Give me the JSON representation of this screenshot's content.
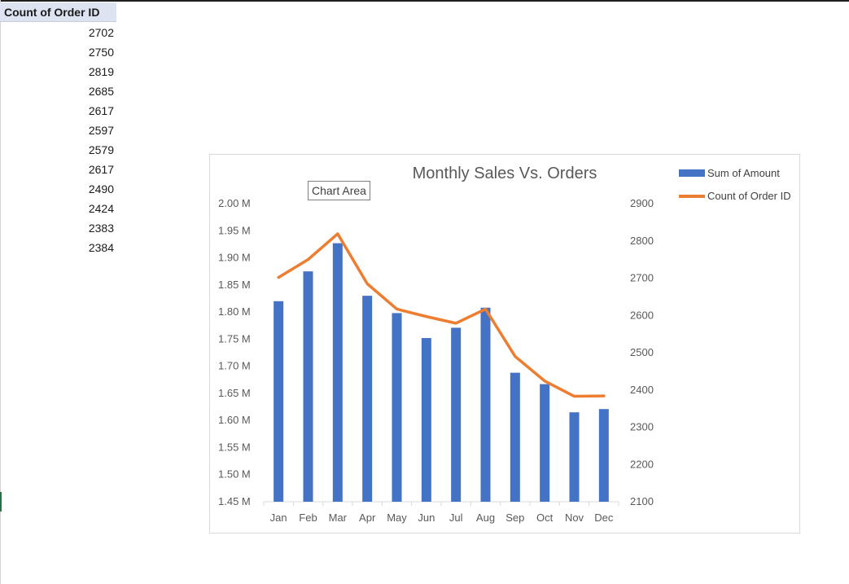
{
  "sheet": {
    "header": "Count of Order ID",
    "values": [
      "2702",
      "2750",
      "2819",
      "2685",
      "2617",
      "2597",
      "2579",
      "2617",
      "2490",
      "2424",
      "2383",
      "2384"
    ]
  },
  "chart_tooltip": "Chart Area",
  "chart_data": {
    "type": "bar",
    "title": "Monthly Sales Vs. Orders",
    "categories": [
      "Jan",
      "Feb",
      "Mar",
      "Apr",
      "May",
      "Jun",
      "Jul",
      "Aug",
      "Sep",
      "Oct",
      "Nov",
      "Dec"
    ],
    "series": [
      {
        "name": "Sum of Amount",
        "type": "bar",
        "axis": "left",
        "color": "#4472c4",
        "values": [
          1820000,
          1875000,
          1927000,
          1830000,
          1798000,
          1752000,
          1771000,
          1808000,
          1688000,
          1667000,
          1615000,
          1621000
        ]
      },
      {
        "name": "Count of Order ID",
        "type": "line",
        "axis": "right",
        "color": "#ed7d31",
        "values": [
          2702,
          2750,
          2819,
          2685,
          2617,
          2597,
          2579,
          2617,
          2490,
          2424,
          2383,
          2384
        ]
      }
    ],
    "y_left": {
      "ylim": [
        1450000,
        2000000
      ],
      "tick_labels": [
        "1.45 M",
        "1.50 M",
        "1.55 M",
        "1.60 M",
        "1.65 M",
        "1.70 M",
        "1.75 M",
        "1.80 M",
        "1.85 M",
        "1.90 M",
        "1.95 M",
        "2.00 M"
      ]
    },
    "y_right": {
      "ylim": [
        2100,
        2900
      ],
      "tick_labels": [
        "2100",
        "2200",
        "2300",
        "2400",
        "2500",
        "2600",
        "2700",
        "2800",
        "2900"
      ]
    },
    "legend_position": "top-right",
    "grid": false
  }
}
